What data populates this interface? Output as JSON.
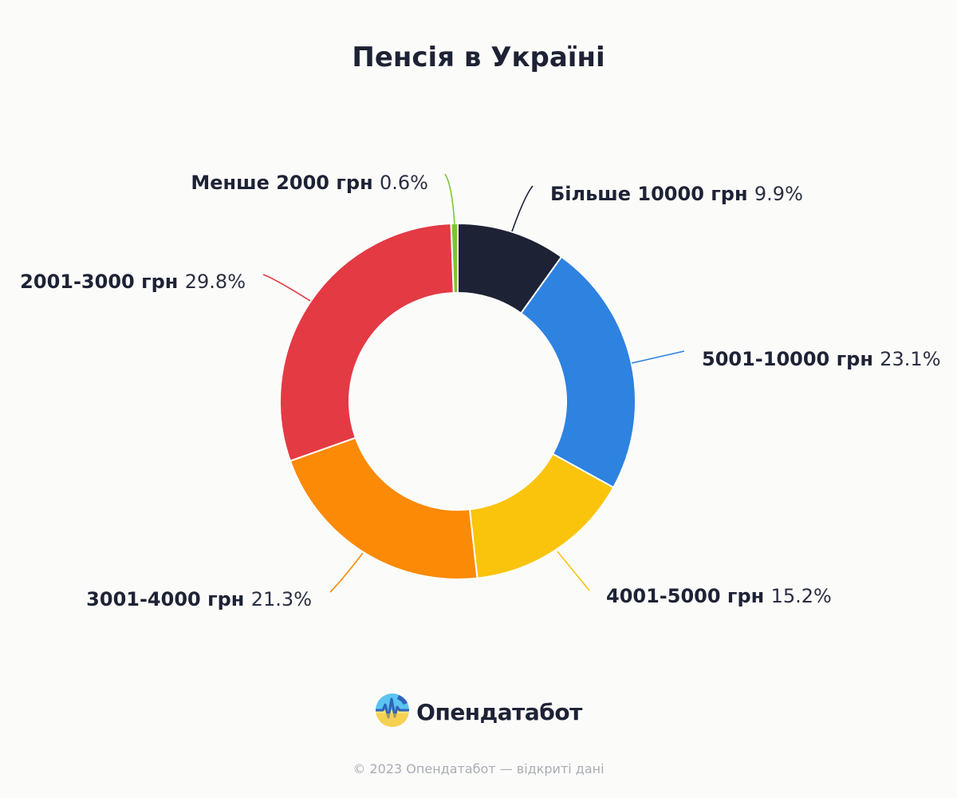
{
  "chart_data": {
    "type": "pie",
    "variant": "donut",
    "title": "Пенсія в Україні",
    "legend": "none",
    "slices": [
      {
        "label": "Більше 10000 грн",
        "value": 9.9,
        "display": "9.9%",
        "color": "#1e2235"
      },
      {
        "label": "5001-10000 грн",
        "value": 23.1,
        "display": "23.1%",
        "color": "#2e82e0"
      },
      {
        "label": "4001-5000 грн",
        "value": 15.2,
        "display": "15.2%",
        "color": "#fac40c"
      },
      {
        "label": "3001-4000 грн",
        "value": 21.3,
        "display": "21.3%",
        "color": "#fb8a06"
      },
      {
        "label": "2001-3000 грн",
        "value": 29.8,
        "display": "29.8%",
        "color": "#e43a44"
      },
      {
        "label": "Менше 2000 грн",
        "value": 0.6,
        "display": "0.6%",
        "color": "#7ec530"
      }
    ]
  },
  "brand": {
    "name": "Опендатабот",
    "logo_icon": "opendatabot-logo-icon"
  },
  "footer": {
    "text": "© 2023 Опендатабот — відкриті дані"
  }
}
